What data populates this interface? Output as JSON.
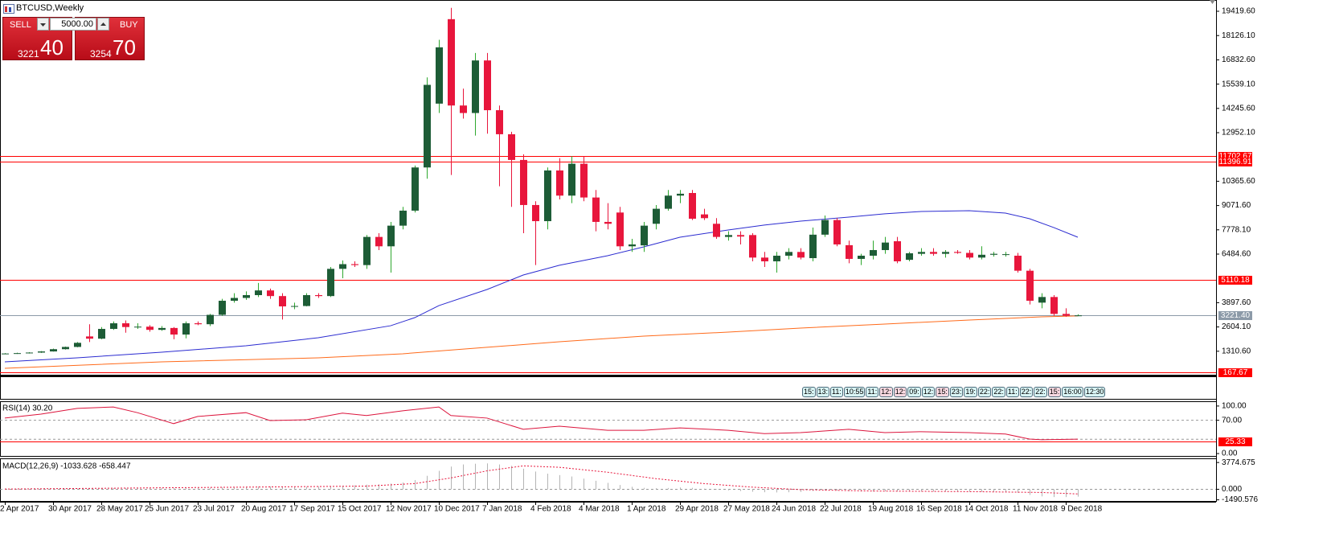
{
  "trade_panel": {
    "sell": "SELL",
    "buy": "BUY",
    "volume": "5000.00",
    "sell_price": 3221,
    "sell_pips": 40,
    "buy_price": 3254,
    "buy_pips": 70
  },
  "order_times": [
    "15:",
    "13:",
    "11:",
    "10:55",
    "11:",
    "12:",
    "12:",
    "09:",
    "12:",
    "15:",
    "23:",
    "19:",
    "22:",
    "22:",
    "11:",
    "22:",
    "22:",
    "15:",
    "16:00",
    "12:30"
  ],
  "chart_data": [
    {
      "type": "candlestick",
      "title": "BTCUSD,Weekly",
      "categories": [
        "2 Apr 2017",
        null,
        null,
        null,
        "30 Apr 2017",
        null,
        null,
        null,
        "28 May 2017",
        null,
        null,
        null,
        "25 Jun 2017",
        null,
        null,
        null,
        "23 Jul 2017",
        null,
        null,
        null,
        "20 Aug 2017",
        null,
        null,
        null,
        "17 Sep 2017",
        null,
        null,
        null,
        "15 Oct 2017",
        null,
        null,
        null,
        "12 Nov 2017",
        null,
        null,
        null,
        "10 Dec 2017",
        null,
        null,
        null,
        "7 Jan 2018",
        null,
        null,
        null,
        "4 Feb 2018",
        null,
        null,
        null,
        "4 Mar 2018",
        null,
        null,
        null,
        "1 Apr 2018",
        null,
        null,
        null,
        "29 Apr 2018",
        null,
        null,
        null,
        "27 May 2018",
        null,
        null,
        null,
        "24 Jun 2018",
        null,
        null,
        null,
        "22 Jul 2018",
        null,
        null,
        null,
        "19 Aug 2018",
        null,
        null,
        null,
        "16 Sep 2018",
        null,
        null,
        null,
        "14 Oct 2018",
        null,
        null,
        null,
        "11 Nov 2018",
        null,
        null,
        null,
        "9 Dec 2018",
        null
      ],
      "open": [
        1180,
        1190,
        1210,
        1240,
        1300,
        1420,
        1540,
        2100,
        1980,
        2500,
        2800,
        2600,
        2620,
        2450,
        2550,
        2200,
        2800,
        2750,
        3250,
        4000,
        4150,
        4300,
        4550,
        4250,
        3700,
        3720,
        4300,
        4250,
        5700,
        5950,
        5900,
        7400,
        6900,
        8000,
        8800,
        11100,
        14500,
        19000,
        14400,
        14000,
        16800,
        14150,
        12870,
        11500,
        9100,
        8240,
        10940,
        9600,
        11300,
        9500,
        8200,
        8700,
        6900,
        6950,
        8100,
        8900,
        9600,
        9740,
        8600,
        8100,
        7400,
        7500,
        7500,
        6300,
        6100,
        6400,
        6600,
        6270,
        7520,
        8300,
        6960,
        6230,
        6400,
        6700,
        7170,
        6180,
        6500,
        6600,
        6500,
        6600,
        6550,
        6300,
        6450,
        6450,
        6400,
        5600,
        3900,
        4200,
        3300,
        3200
      ],
      "high": [
        1210,
        1230,
        1260,
        1320,
        1450,
        1560,
        1800,
        2750,
        2600,
        2900,
        2950,
        2800,
        2700,
        2650,
        2600,
        2900,
        2900,
        3300,
        4100,
        4400,
        4500,
        4950,
        4650,
        4400,
        3900,
        4400,
        4400,
        5800,
        6150,
        6100,
        7500,
        7600,
        8200,
        9000,
        11200,
        15900,
        17900,
        19600,
        15300,
        17200,
        17200,
        14400,
        13000,
        11800,
        9300,
        11100,
        11600,
        11700,
        11700,
        9900,
        9200,
        9000,
        7300,
        8200,
        9100,
        9900,
        9900,
        9900,
        8900,
        8400,
        7700,
        7700,
        7600,
        6600,
        6600,
        6800,
        6800,
        7900,
        8540,
        8400,
        7200,
        6500,
        7200,
        7400,
        7400,
        6600,
        6800,
        6800,
        6700,
        6700,
        6700,
        6900,
        6600,
        6600,
        6550,
        5700,
        4400,
        4300,
        3600,
        3280
      ],
      "low": [
        1150,
        1170,
        1190,
        1220,
        1290,
        1400,
        1520,
        1800,
        1950,
        2450,
        2300,
        2500,
        2350,
        2400,
        1950,
        2000,
        2700,
        2650,
        3200,
        3900,
        4050,
        4200,
        4100,
        3000,
        3550,
        3700,
        4150,
        4200,
        5200,
        5800,
        5700,
        6700,
        5500,
        7800,
        8700,
        10500,
        14000,
        10700,
        13700,
        12800,
        12900,
        10100,
        9000,
        7600,
        5900,
        7800,
        9400,
        9200,
        9300,
        7700,
        7800,
        6700,
        6600,
        6600,
        7800,
        8800,
        9200,
        8300,
        8300,
        7300,
        7200,
        7000,
        6100,
        5800,
        5500,
        6200,
        6200,
        6100,
        7400,
        6900,
        6000,
        5900,
        6200,
        6500,
        6000,
        6100,
        6400,
        6400,
        6300,
        6500,
        6200,
        6200,
        6350,
        6350,
        5500,
        3800,
        3600,
        3200,
        3150,
        3180
      ],
      "close": [
        1190,
        1210,
        1240,
        1300,
        1420,
        1540,
        1760,
        1980,
        2500,
        2800,
        2600,
        2620,
        2450,
        2550,
        2200,
        2800,
        2750,
        3250,
        4000,
        4150,
        4300,
        4550,
        4250,
        3700,
        3720,
        4300,
        4250,
        5700,
        5950,
        5900,
        7400,
        6900,
        8000,
        8800,
        11100,
        15500,
        17500,
        14400,
        14000,
        16800,
        14150,
        12870,
        11500,
        9100,
        8240,
        10940,
        9600,
        11300,
        9500,
        8200,
        8100,
        6900,
        7000,
        8000,
        8900,
        9600,
        9700,
        8370,
        8400,
        7400,
        7500,
        7420,
        6300,
        6100,
        6400,
        6600,
        6300,
        7520,
        8300,
        7000,
        6230,
        6400,
        6700,
        7100,
        6100,
        6530,
        6600,
        6500,
        6600,
        6550,
        6300,
        6450,
        6500,
        6480,
        5600,
        4000,
        4200,
        3300,
        3200,
        3221.4
      ],
      "up_color": "#1d5c36",
      "up_wick": "#2ea82e",
      "down_color": "#e8163c",
      "series": [
        {
          "color": "#2b2bd0",
          "x": [
            0,
            6,
            13,
            20,
            26,
            32,
            34,
            36,
            40,
            43,
            46,
            50,
            53,
            56,
            60,
            63,
            66,
            70,
            73,
            76,
            80,
            83,
            85,
            87,
            89
          ],
          "values": [
            745,
            960,
            1260,
            1600,
            2030,
            2670,
            3100,
            3740,
            4600,
            5370,
            5890,
            6400,
            6870,
            7385,
            7770,
            8030,
            8240,
            8455,
            8630,
            8755,
            8800,
            8670,
            8370,
            7900,
            7385
          ]
        },
        {
          "color": "#ff6a1a",
          "x": [
            0,
            13,
            26,
            33,
            40,
            46,
            53,
            60,
            66,
            73,
            80,
            86,
            89
          ],
          "values": [
            403,
            745,
            960,
            1175,
            1520,
            1815,
            2115,
            2330,
            2545,
            2760,
            2975,
            3145,
            3190
          ]
        }
      ],
      "ylim": [
        -1225,
        20020
      ],
      "yticks": [
        {
          "value": 19419.6,
          "label": "19419.60"
        },
        {
          "value": 18126.1,
          "label": "18126.10"
        },
        {
          "value": 16832.6,
          "label": "16832.60"
        },
        {
          "value": 15539.1,
          "label": "15539.10"
        },
        {
          "value": 14245.6,
          "label": "14245.60"
        },
        {
          "value": 12952.1,
          "label": "12952.10"
        },
        {
          "value": 10365.6,
          "label": "10365.60"
        },
        {
          "value": 9071.6,
          "label": "9071.60"
        },
        {
          "value": 7778.1,
          "label": "7778.10"
        },
        {
          "value": 6484.6,
          "label": "6484.60"
        },
        {
          "value": 3897.6,
          "label": "3897.60"
        },
        {
          "value": 2604.1,
          "label": "2604.10"
        },
        {
          "value": 1310.6,
          "label": "1310.60"
        }
      ],
      "levels": [
        11702.67,
        11396.91,
        5110.18,
        {
          "value": 3221.4,
          "label": "3221.40"
        },
        167.67
      ],
      "level_colors": [
        "#ff0000",
        "#ff0000",
        "#ff0000",
        "#8c9aa8",
        "#ff0000"
      ]
    },
    {
      "type": "line",
      "title": "RSI(14) 30.20",
      "color": "#dc143c",
      "x": [
        0,
        3,
        6,
        9,
        11,
        14,
        16,
        20,
        22,
        25,
        28,
        30,
        33,
        36,
        37,
        40,
        43,
        46,
        50,
        53,
        56,
        60,
        63,
        66,
        70,
        73,
        76,
        80,
        83,
        85,
        86,
        89
      ],
      "values": [
        74.6,
        83,
        95,
        98,
        86,
        63,
        78,
        86,
        69.5,
        71,
        85,
        80,
        90,
        98,
        80,
        74.6,
        51,
        57.6,
        49,
        49,
        54,
        49,
        42,
        44,
        51,
        44,
        46,
        44,
        41,
        30.5,
        29,
        30.2
      ],
      "ylim": [
        -5,
        110
      ],
      "yticks": [
        {
          "value": 100,
          "label": "100.00"
        },
        {
          "value": 70,
          "label": "70.00"
        },
        {
          "value": 0,
          "label": "0.00"
        }
      ],
      "dashed_levels": [
        70,
        30
      ],
      "levels": [
        25.33
      ],
      "level_colors": [
        "#ff0000"
      ]
    },
    {
      "type": "bar",
      "title": "MACD(12,26,9) -1033.628 -658.447",
      "color": "#b4b4b4",
      "values": [
        20,
        25,
        30,
        40,
        50,
        70,
        90,
        120,
        150,
        170,
        180,
        190,
        190,
        180,
        170,
        180,
        200,
        230,
        270,
        310,
        350,
        380,
        400,
        390,
        370,
        360,
        380,
        430,
        500,
        560,
        650,
        700,
        800,
        950,
        1300,
        1900,
        2600,
        3200,
        3500,
        3600,
        3650,
        3500,
        3300,
        2900,
        2500,
        2200,
        2000,
        1800,
        1500,
        1200,
        900,
        600,
        350,
        200,
        150,
        180,
        250,
        200,
        80,
        -50,
        -150,
        -250,
        -350,
        -420,
        -450,
        -420,
        -380,
        -250,
        -150,
        -200,
        -280,
        -320,
        -330,
        -300,
        -310,
        -320,
        -330,
        -330,
        -340,
        -350,
        -360,
        -370,
        -380,
        -390,
        -500,
        -800,
        -1000,
        -1100,
        -1100,
        -1033.628
      ],
      "signal": {
        "color": "#e8163c",
        "x": [
          0,
          20,
          30,
          34,
          37,
          40,
          43,
          46,
          50,
          54,
          58,
          62,
          66,
          72,
          80,
          86,
          89
        ],
        "values": [
          30,
          300,
          450,
          800,
          1600,
          2600,
          3300,
          3100,
          2400,
          1500,
          800,
          300,
          -50,
          -250,
          -330,
          -450,
          -658.447
        ]
      },
      "ylim": [
        -1650,
        4360
      ],
      "yticks": [
        3774.675,
        {
          "value": 0,
          "label": "0.000"
        },
        -1490.576
      ]
    }
  ]
}
